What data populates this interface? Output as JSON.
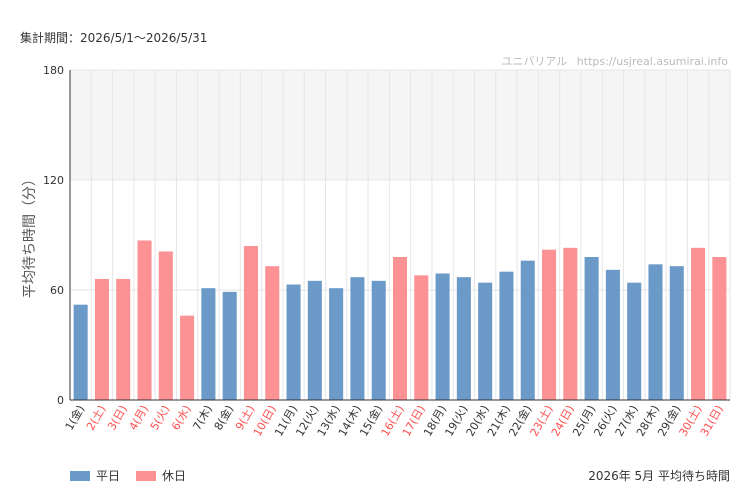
{
  "header": {
    "period_label": "集計期間：2026/5/1〜2026/5/31",
    "watermark_site": "ユニバリアル",
    "watermark_url": "https://usjreal.asumirai.info"
  },
  "footer": {
    "title": "2026年 5月 平均待ち時間"
  },
  "colors": {
    "weekday": "#6b9ac8",
    "holiday": "#fd9294",
    "weekday_label": "#333333",
    "holiday_label": "#ff4d4d",
    "band": "#f5f5f5",
    "grid": "#e6e6e6",
    "axis": "#333333"
  },
  "chart_data": {
    "type": "bar",
    "title": "",
    "xlabel": "",
    "ylabel": "平均待ち時間（分）",
    "ylim": [
      0,
      180
    ],
    "yticks": [
      0,
      60,
      120,
      180
    ],
    "highlight_band": [
      120,
      180
    ],
    "grid": true,
    "legend_position": "bottom-left",
    "categories": [
      "1(金)",
      "2(土)",
      "3(日)",
      "4(月)",
      "5(火)",
      "6(水)",
      "7(木)",
      "8(金)",
      "9(土)",
      "10(日)",
      "11(月)",
      "12(火)",
      "13(水)",
      "14(木)",
      "15(金)",
      "16(土)",
      "17(日)",
      "18(月)",
      "19(火)",
      "20(水)",
      "21(木)",
      "22(金)",
      "23(土)",
      "24(日)",
      "25(月)",
      "26(火)",
      "27(水)",
      "28(木)",
      "29(金)",
      "30(土)",
      "31(日)"
    ],
    "values": [
      52,
      66,
      66,
      87,
      81,
      46,
      61,
      59,
      84,
      73,
      63,
      65,
      61,
      67,
      65,
      78,
      68,
      69,
      67,
      64,
      70,
      76,
      82,
      83,
      78,
      71,
      64,
      74,
      73,
      83,
      78
    ],
    "day_types": [
      "weekday",
      "holiday",
      "holiday",
      "holiday",
      "holiday",
      "holiday",
      "weekday",
      "weekday",
      "holiday",
      "holiday",
      "weekday",
      "weekday",
      "weekday",
      "weekday",
      "weekday",
      "holiday",
      "holiday",
      "weekday",
      "weekday",
      "weekday",
      "weekday",
      "weekday",
      "holiday",
      "holiday",
      "weekday",
      "weekday",
      "weekday",
      "weekday",
      "weekday",
      "holiday",
      "holiday"
    ],
    "legend": [
      {
        "key": "weekday",
        "name": "平日"
      },
      {
        "key": "holiday",
        "name": "休日"
      }
    ]
  }
}
